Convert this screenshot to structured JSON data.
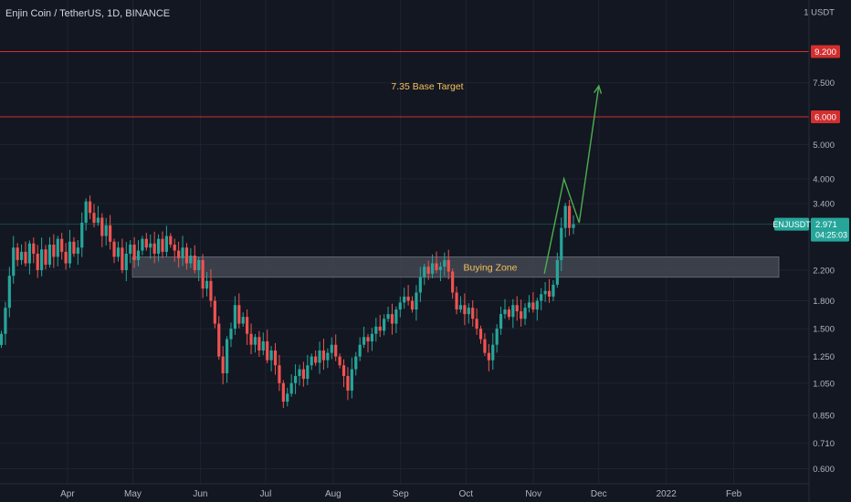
{
  "header": {
    "title": "Enjin Coin / TetherUS, 1D, BINANCE"
  },
  "colors": {
    "background": "#131722",
    "grid": "#1f2331",
    "up": "#26a69a",
    "down": "#ef5350",
    "axis_text": "#b2b5be",
    "level_line": "#d32f2f",
    "zone_fill": "#434651",
    "annotation_text": "#f5c25b",
    "projection": "#4caf50"
  },
  "chart_data": {
    "type": "candlestick",
    "symbol": "ENJUSDT",
    "y_scale": "log",
    "y_unit": "USDT",
    "x_ticks": [
      "Apr",
      "May",
      "Jun",
      "Jul",
      "Aug",
      "Sep",
      "Oct",
      "Nov",
      "Dec",
      "2022",
      "Feb"
    ],
    "y_ticks": [
      "1 USDT",
      "9.200",
      "7.500",
      "6.000",
      "5.000",
      "4.000",
      "3.400",
      "2.971",
      "2.200",
      "1.800",
      "1.500",
      "1.250",
      "1.050",
      "0.850",
      "0.710",
      "0.600"
    ],
    "last_price": "2.971",
    "countdown": "04:25:03",
    "price_labels": [
      {
        "label": "9.200",
        "color": "#d32f2f"
      },
      {
        "label": "6.000",
        "color": "#d32f2f"
      },
      {
        "label": "ENJUSDT",
        "color": "#26a69a"
      },
      {
        "label": "2.971",
        "color": "#26a69a"
      }
    ],
    "horizontal_levels": [
      9.2,
      6.0
    ],
    "zone": {
      "label": "Buying Zone",
      "low": 2.1,
      "high": 2.4
    },
    "annotations": [
      {
        "text": "7.35 Base Target",
        "value": 7.35
      }
    ],
    "projection_path": [
      {
        "x": "2021-11-06",
        "y": 2.15
      },
      {
        "x": "2021-11-15",
        "y": 4.0
      },
      {
        "x": "2021-11-22",
        "y": 3.0
      },
      {
        "x": "2021-12-01",
        "y": 7.35
      }
    ],
    "x_start": "2021-03-01",
    "x_end": "2022-02-28",
    "series_close": [
      1.45,
      1.72,
      2.12,
      2.55,
      2.35,
      2.48,
      2.3,
      2.62,
      2.45,
      2.2,
      2.52,
      2.28,
      2.6,
      2.4,
      2.7,
      2.48,
      2.3,
      2.65,
      2.45,
      2.55,
      3.0,
      3.45,
      3.2,
      3.0,
      3.1,
      2.75,
      2.95,
      2.65,
      2.4,
      2.55,
      2.2,
      2.45,
      2.6,
      2.35,
      2.5,
      2.7,
      2.55,
      2.62,
      2.45,
      2.7,
      2.48,
      2.75,
      2.6,
      2.5,
      2.38,
      2.55,
      2.3,
      2.42,
      2.2,
      2.35,
      1.95,
      2.05,
      1.8,
      1.55,
      1.25,
      1.12,
      1.4,
      1.5,
      1.75,
      1.55,
      1.62,
      1.45,
      1.35,
      1.42,
      1.3,
      1.38,
      1.22,
      1.3,
      1.18,
      1.05,
      0.93,
      0.98,
      1.05,
      1.1,
      1.15,
      1.08,
      1.18,
      1.25,
      1.2,
      1.3,
      1.22,
      1.28,
      1.35,
      1.25,
      1.18,
      1.1,
      1.0,
      1.15,
      1.25,
      1.35,
      1.42,
      1.38,
      1.45,
      1.52,
      1.48,
      1.6,
      1.65,
      1.55,
      1.7,
      1.78,
      1.85,
      1.8,
      1.7,
      1.9,
      2.1,
      2.25,
      2.15,
      2.3,
      2.2,
      2.25,
      2.35,
      2.18,
      1.9,
      1.7,
      1.75,
      1.65,
      1.72,
      1.6,
      1.5,
      1.4,
      1.28,
      1.22,
      1.35,
      1.5,
      1.65,
      1.7,
      1.62,
      1.75,
      1.68,
      1.6,
      1.72,
      1.78,
      1.7,
      1.8,
      1.88,
      1.92,
      1.85,
      2.0,
      2.35,
      2.9,
      3.35,
      2.9,
      2.97
    ]
  }
}
